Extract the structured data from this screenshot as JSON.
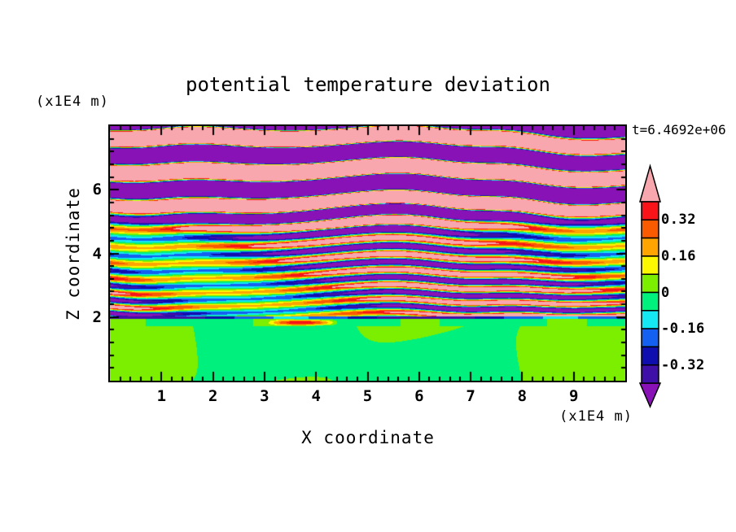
{
  "figure": {
    "title": "potential temperature deviation",
    "time_label": "t=6.4692e+06",
    "z_unit_label": "(x1E4 m)",
    "x_unit_label": "(x1E4 m)",
    "x_axis_label": "X coordinate",
    "z_axis_label": "Z coordinate"
  },
  "chart_data": {
    "type": "heatmap",
    "subtype": "filled contour plot",
    "title": "potential temperature deviation",
    "xlabel": "X coordinate",
    "ylabel": "Z coordinate",
    "x_units": "x1E4 m",
    "z_units": "x1E4 m",
    "time_annotation": "t=6.4692e+06",
    "xlim": [
      0,
      10
    ],
    "zlim": [
      0,
      8
    ],
    "x_major_ticks": [
      1,
      2,
      3,
      4,
      5,
      6,
      7,
      8,
      9
    ],
    "x_minor_step": 0.2,
    "z_major_ticks": [
      2,
      4,
      6
    ],
    "z_minor_step": 0.4,
    "grid": false,
    "contour_levels": [
      -0.4,
      -0.32,
      -0.24,
      -0.16,
      -0.08,
      0,
      0.08,
      0.16,
      0.24,
      0.32,
      0.4
    ],
    "palette": [
      {
        "name": "purple-under",
        "hex": "#8912B6",
        "upper": -0.4
      },
      {
        "name": "indigo",
        "hex": "#3F10A8",
        "upper": -0.32
      },
      {
        "name": "navy",
        "hex": "#0F0FB0",
        "upper": -0.24
      },
      {
        "name": "blue",
        "hex": "#1460F0",
        "upper": -0.16
      },
      {
        "name": "cyan",
        "hex": "#14E8F2",
        "upper": -0.08
      },
      {
        "name": "spring-green",
        "hex": "#00F07E",
        "upper": 0
      },
      {
        "name": "chartreuse",
        "hex": "#7CEE00",
        "upper": 0.08
      },
      {
        "name": "yellow",
        "hex": "#FCF800",
        "upper": 0.16
      },
      {
        "name": "orange",
        "hex": "#FFA400",
        "upper": 0.24
      },
      {
        "name": "orange-red",
        "hex": "#FA5A00",
        "upper": 0.32
      },
      {
        "name": "red",
        "hex": "#F81418",
        "upper": 0.4
      },
      {
        "name": "pink-over",
        "hex": "#F9A7AE",
        "upper": 1000000000.0
      }
    ],
    "colorbar": {
      "labels": [
        "0.32",
        "0.16",
        "0",
        "-0.16",
        "-0.32"
      ],
      "segments_top_to_bottom": [
        "#F81418",
        "#FA5A00",
        "#FFA400",
        "#FCF800",
        "#7CEE00",
        "#00F07E",
        "#14E8F2",
        "#1460F0",
        "#0F0FB0",
        "#3F10A8"
      ],
      "over_arrow": "#F9A7AE",
      "under_arrow": "#8912B6"
    },
    "field_model": {
      "description": "Qualitative reconstruction of the plotted field: values near 0 below z=2 (green region), thin strongly oscillating layers spanning the full +/-0.4 range for 2<z<5.5, and wide saturated alternating bands beyond +/-0.4 (pink/purple) for z>5.5, with a dark negative interface line at z=2.",
      "interface_z": 2.0,
      "mid_layer_wavelength": 0.4,
      "top_band_wavelength": 1.05,
      "mid_amplitude": 0.52,
      "top_amplitude": 2.3,
      "bottom_amplitude": 0.06
    }
  }
}
